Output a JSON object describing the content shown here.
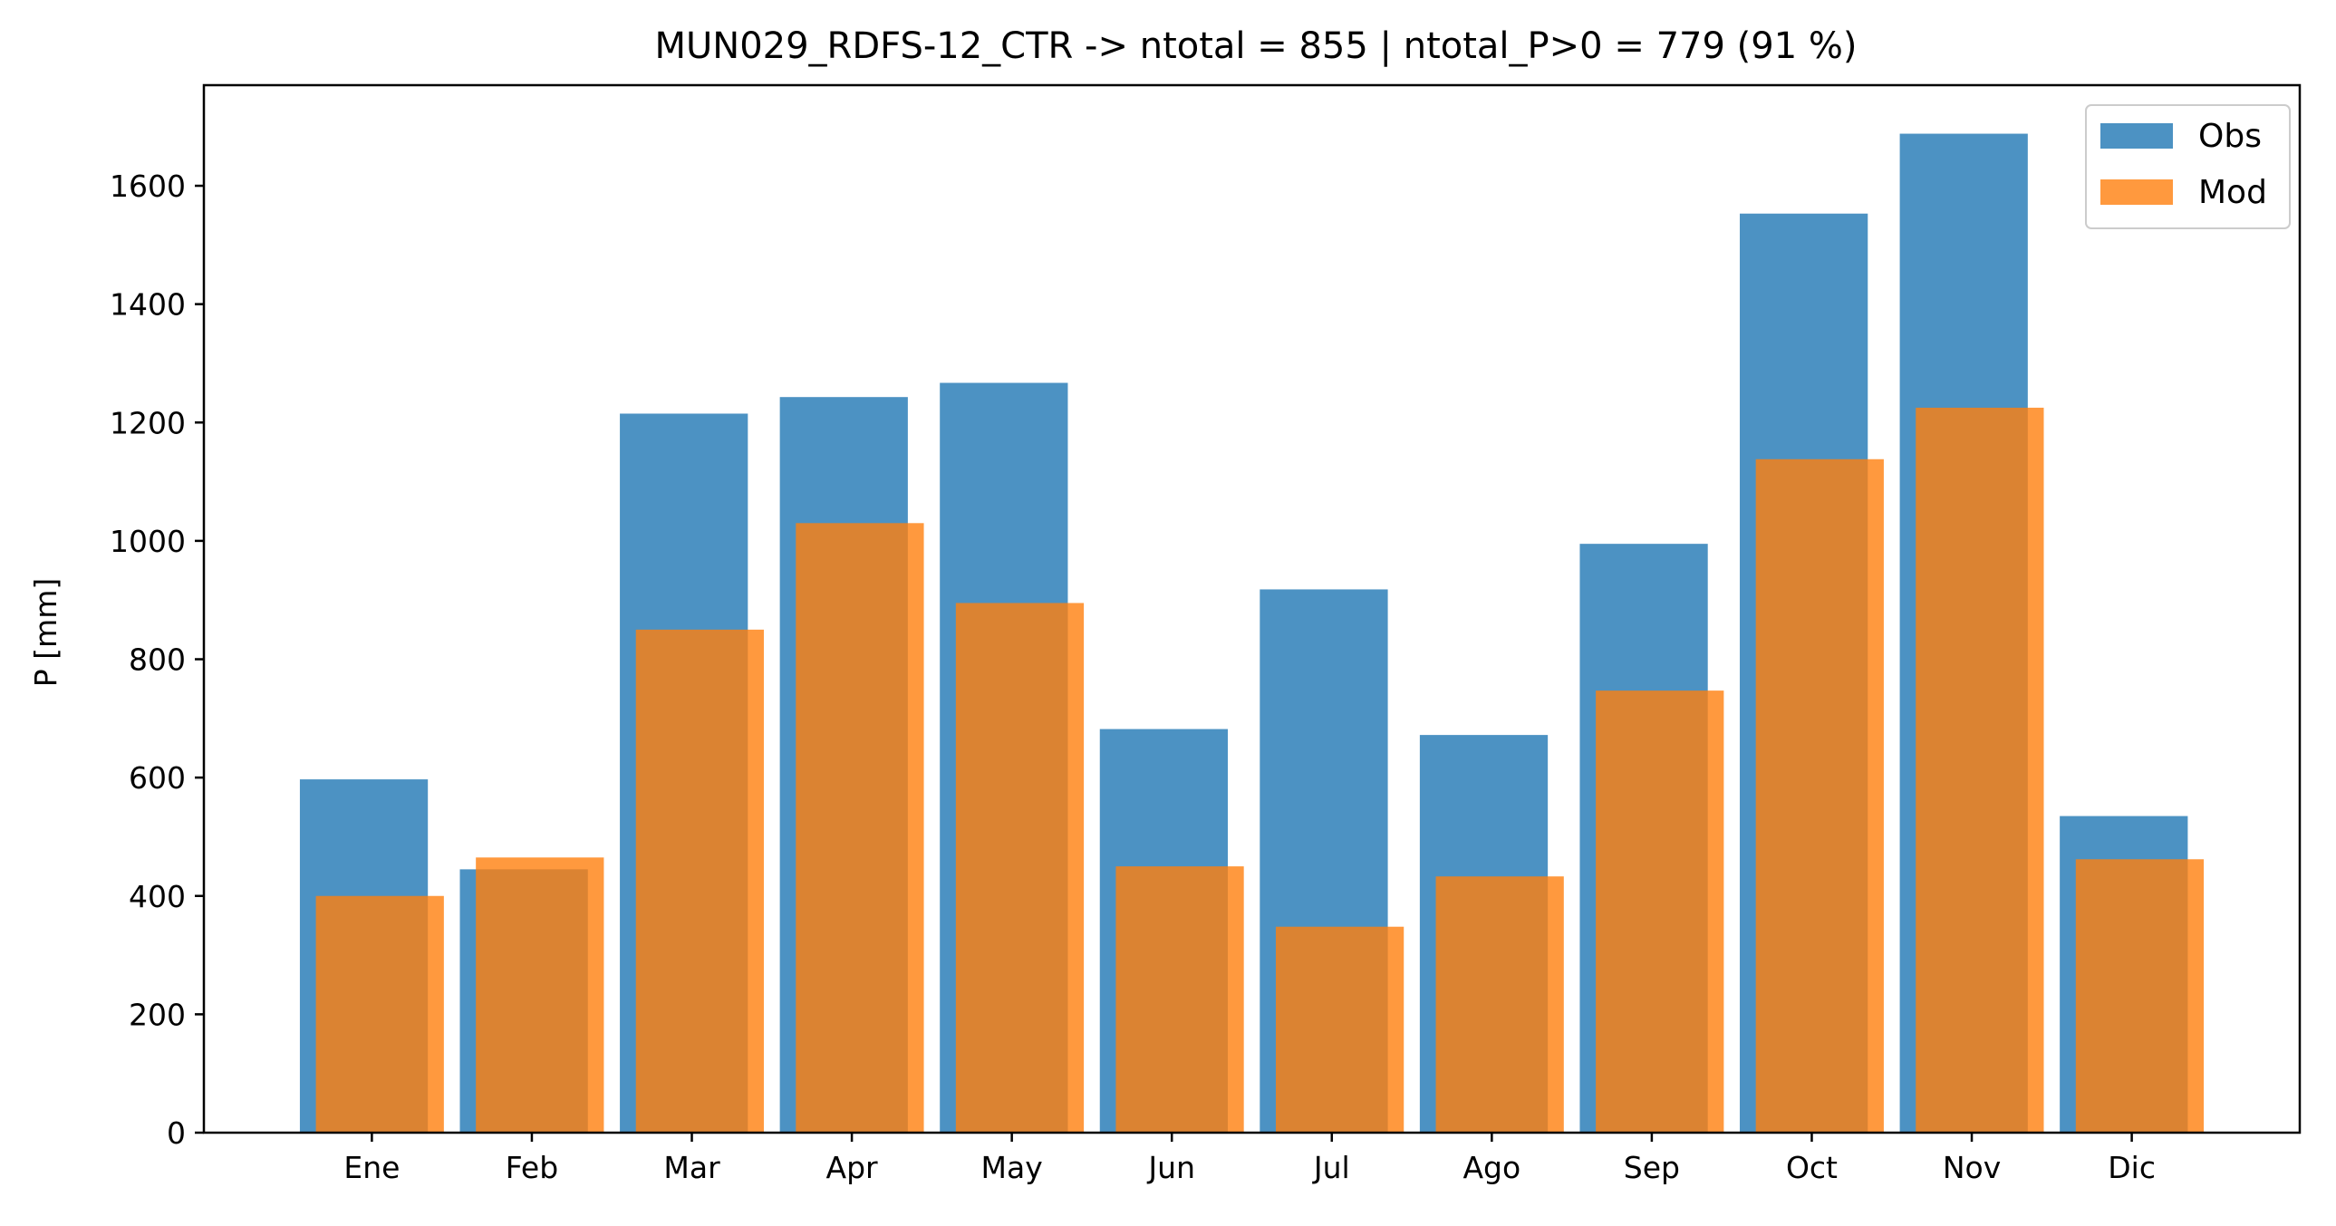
{
  "chart_data": {
    "type": "bar",
    "title": "MUN029_RDFS-12_CTR -> ntotal = 855 | ntotal_P>0 = 779 (91 %)",
    "xlabel": "",
    "ylabel": "P [mm]",
    "categories": [
      "Ene",
      "Feb",
      "Mar",
      "Apr",
      "May",
      "Jun",
      "Jul",
      "Ago",
      "Sep",
      "Oct",
      "Nov",
      "Dic"
    ],
    "series": [
      {
        "name": "Obs",
        "color": "#1f77b4",
        "opacity": 0.8,
        "values": [
          597,
          445,
          1215,
          1243,
          1267,
          682,
          918,
          672,
          995,
          1553,
          1688,
          535
        ]
      },
      {
        "name": "Mod",
        "color": "#ff7f0e",
        "opacity": 0.8,
        "values": [
          400,
          465,
          850,
          1030,
          895,
          450,
          348,
          433,
          747,
          1138,
          1225,
          462
        ]
      }
    ],
    "ylim": [
      0,
      1770
    ],
    "yticks": [
      0,
      200,
      400,
      600,
      800,
      1000,
      1200,
      1400,
      1600
    ],
    "legend_position": "top-right",
    "grid": false
  }
}
